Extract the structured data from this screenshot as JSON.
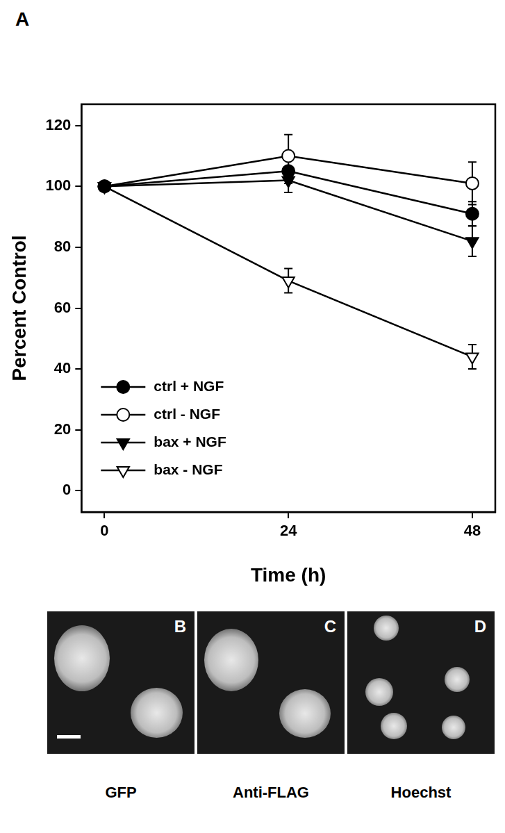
{
  "figure_label": "A",
  "chart_data": {
    "type": "line",
    "x_label": "Time (h)",
    "y_label": "Percent Control",
    "x": [
      0,
      24,
      48
    ],
    "xlim": [
      -3,
      51
    ],
    "xticks": [
      0,
      24,
      48
    ],
    "ylim": [
      -7,
      127
    ],
    "yticks": [
      0,
      20,
      40,
      60,
      80,
      100,
      120
    ],
    "grid": false,
    "legend": "lower left",
    "series": [
      {
        "name": "ctrl + NGF",
        "color": "#000000",
        "marker": "filled_circle",
        "values": [
          100,
          105,
          91
        ],
        "errors": [
          null,
          4,
          4
        ]
      },
      {
        "name": "ctrl - NGF",
        "color": "#000000",
        "marker": "open_circle",
        "values": [
          100,
          110,
          101
        ],
        "errors": [
          null,
          7,
          7
        ]
      },
      {
        "name": "bax + NGF",
        "color": "#000000",
        "marker": "filled_triangle_down",
        "values": [
          100,
          102,
          82
        ],
        "errors": [
          null,
          4,
          5
        ]
      },
      {
        "name": "bax - NGF",
        "color": "#000000",
        "marker": "open_triangle_down",
        "values": [
          100,
          69,
          44
        ],
        "errors": [
          null,
          4,
          4
        ]
      }
    ]
  },
  "panels": [
    {
      "label": "B",
      "caption": "GFP"
    },
    {
      "label": "C",
      "caption": "Anti-FLAG"
    },
    {
      "label": "D",
      "caption": "Hoechst"
    }
  ]
}
